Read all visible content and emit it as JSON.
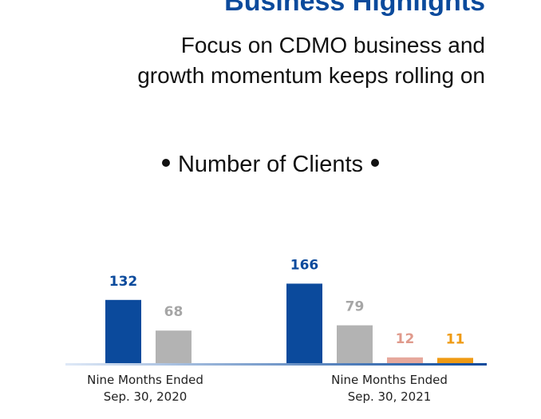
{
  "header": {
    "title": "Business Highlights",
    "subtitle_line_1": "Focus on CDMO business and",
    "subtitle_line_2": "growth momentum keeps rolling on"
  },
  "chart_heading": "Number of Clients",
  "colors": {
    "blue": "#0b4a9c",
    "gray": "#b3b3b3",
    "pink": "#e6a89c",
    "orange": "#ef9a13",
    "axis_gradient_start": "#dfe9f7",
    "axis_gradient_end": "#0b4a9c"
  },
  "chart_data": {
    "type": "bar",
    "title": "Number of Clients",
    "categories": [
      {
        "line1": "Nine Months Ended",
        "line2": "Sep. 30, 2020"
      },
      {
        "line1": "Nine Months Ended",
        "line2": "Sep. 30, 2021"
      }
    ],
    "groups": [
      {
        "bars": [
          {
            "value": 132,
            "label": "132",
            "color": "#0b4a9c",
            "label_color": "#0b4a9c"
          },
          {
            "value": 68,
            "label": "68",
            "color": "#b3b3b3",
            "label_color": "#a6a6a6"
          }
        ]
      },
      {
        "bars": [
          {
            "value": 166,
            "label": "166",
            "color": "#0b4a9c",
            "label_color": "#0b4a9c"
          },
          {
            "value": 79,
            "label": "79",
            "color": "#b3b3b3",
            "label_color": "#a6a6a6"
          },
          {
            "value": 12,
            "label": "12",
            "color": "#e6a89c",
            "label_color": "#e09a8c"
          },
          {
            "value": 11,
            "label": "11",
            "color": "#ef9a13",
            "label_color": "#ef9a13"
          }
        ]
      }
    ],
    "xlabel": "",
    "ylabel": "",
    "grid": false,
    "legend": "none"
  }
}
